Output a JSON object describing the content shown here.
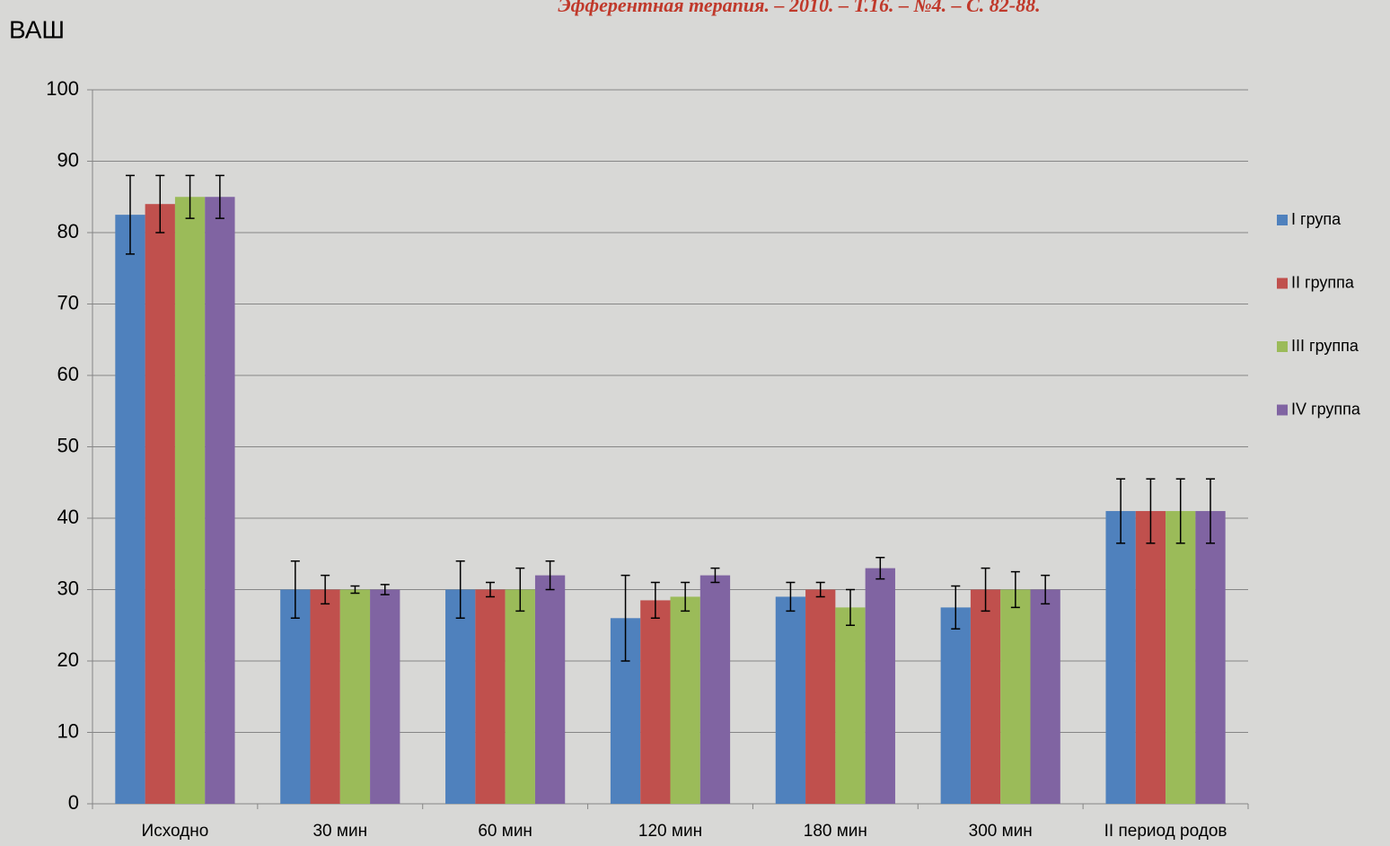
{
  "chart_data": {
    "type": "bar",
    "title": "Эфферентная терапия. – 2010. – Т.16. – №4. – С. 82-88.",
    "y_label": "ВАШ",
    "categories": [
      "Исходно",
      "30 мин",
      "60 мин",
      "120 мин",
      "180 мин",
      "300 мин",
      "II период родов"
    ],
    "series": [
      {
        "name": "I група",
        "color": "#4f81bd",
        "values": [
          82.5,
          30,
          30,
          26,
          29,
          27.5,
          41
        ],
        "errors": [
          5.5,
          4,
          4,
          6,
          2,
          3,
          4.5
        ]
      },
      {
        "name": "II группа",
        "color": "#c0504d",
        "values": [
          84,
          30,
          30,
          28.5,
          30,
          30,
          41
        ],
        "errors": [
          4,
          2,
          1,
          2.5,
          1,
          3,
          4.5
        ]
      },
      {
        "name": "III группа",
        "color": "#9bbb59",
        "values": [
          85,
          30,
          30,
          29,
          27.5,
          30,
          41
        ],
        "errors": [
          3,
          0.5,
          3,
          2,
          2.5,
          2.5,
          4.5
        ]
      },
      {
        "name": "IV группа",
        "color": "#8064a2",
        "values": [
          85,
          30,
          32,
          32,
          33,
          30,
          41
        ],
        "errors": [
          3,
          0.7,
          2,
          1,
          1.5,
          2,
          4.5
        ]
      }
    ],
    "ylim": [
      0,
      100
    ],
    "yticks": [
      0,
      10,
      20,
      30,
      40,
      50,
      60,
      70,
      80,
      90,
      100
    ],
    "grid": true,
    "legend": "right"
  }
}
